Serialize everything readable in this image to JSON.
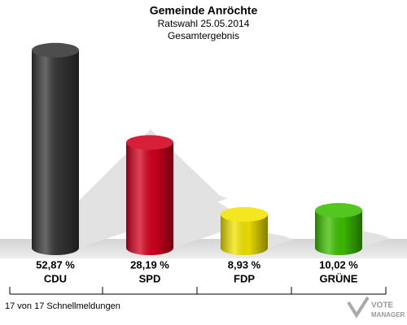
{
  "chart_data": {
    "type": "bar",
    "title": "Gemeinde Anröchte",
    "subtitle": "Ratswahl 25.05.2014",
    "subtitle2": "Gesamtergebnis",
    "categories": [
      "CDU",
      "SPD",
      "FDP",
      "GRÜNE"
    ],
    "values": [
      52.87,
      28.19,
      8.93,
      10.02
    ],
    "value_labels": [
      "52,87 %",
      "28,19 %",
      "8,93 %",
      "10,02 %"
    ],
    "colors": [
      "#353535",
      "#d2001e",
      "#f2e400",
      "#3cbf00"
    ],
    "footer": "17 von 17 Schnellmeldungen",
    "logo": [
      "VOTE",
      "MANAGER"
    ]
  }
}
